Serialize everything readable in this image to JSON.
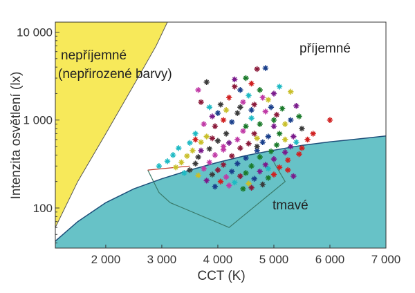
{
  "chart_data": {
    "type": "scatter",
    "xlabel": "CCT (K)",
    "ylabel": "Intenzita osvětlení (lx)",
    "xlim": [
      1100,
      7000
    ],
    "ylim": [
      35,
      13000
    ],
    "y_scale": "log",
    "x_ticks": [
      {
        "value": 2000,
        "label": "2 000"
      },
      {
        "value": 3000,
        "label": "3 000"
      },
      {
        "value": 4000,
        "label": "4 000"
      },
      {
        "value": 5000,
        "label": "5 000"
      },
      {
        "value": 6000,
        "label": "6 000"
      },
      {
        "value": 7000,
        "label": "7 000"
      }
    ],
    "y_ticks": [
      {
        "value": 100,
        "label": "100"
      },
      {
        "value": 1000,
        "label": "1 000"
      },
      {
        "value": 10000,
        "label": "10 000"
      }
    ],
    "regions": [
      {
        "label": "nepříjemné",
        "label2": "(nepřirozené barvy)",
        "color": "#f7e95a"
      },
      {
        "label": "příjemné",
        "color": "#ffffff"
      },
      {
        "label": "tmavé",
        "color": "#67c2c7"
      }
    ],
    "region_boundaries": {
      "upper": [
        [
          1100,
          60
        ],
        [
          1500,
          200
        ],
        [
          2000,
          700
        ],
        [
          2500,
          2500
        ],
        [
          2900,
          7000
        ],
        [
          3100,
          13000
        ]
      ],
      "lower": [
        [
          1100,
          42
        ],
        [
          1500,
          70
        ],
        [
          2000,
          115
        ],
        [
          2500,
          165
        ],
        [
          3000,
          215
        ],
        [
          3500,
          270
        ],
        [
          4000,
          330
        ],
        [
          4500,
          395
        ],
        [
          5000,
          455
        ],
        [
          5500,
          515
        ],
        [
          6000,
          565
        ],
        [
          6500,
          610
        ],
        [
          7000,
          660
        ]
      ]
    },
    "polygons": [
      {
        "color": "#3a7a6a",
        "points": [
          [
            2750,
            270
          ],
          [
            2950,
            150
          ],
          [
            3150,
            115
          ],
          [
            4200,
            60
          ],
          [
            5200,
            200
          ],
          [
            5000,
            330
          ]
        ]
      },
      {
        "color": "#c0392b",
        "points": [
          [
            2750,
            270
          ],
          [
            3500,
            300
          ]
        ]
      }
    ],
    "marker_colors": [
      "#8b1a3a",
      "#1a3f8b",
      "#1a7a2a",
      "#7a1a8b",
      "#d02020",
      "#1fbac4",
      "#c9bf2a",
      "#3a3a3a",
      "#c03aa6"
    ],
    "points": [
      [
        4700,
        3800
      ],
      [
        4850,
        3900
      ],
      [
        4500,
        3000
      ],
      [
        4300,
        2900
      ],
      [
        4600,
        2600
      ],
      [
        5100,
        2400
      ],
      [
        5300,
        2100
      ],
      [
        3800,
        2700
      ],
      [
        3650,
        2200
      ],
      [
        3700,
        1600
      ],
      [
        4400,
        2200
      ],
      [
        4750,
        2200
      ],
      [
        5000,
        2000
      ],
      [
        4200,
        1800
      ],
      [
        4550,
        1900
      ],
      [
        4900,
        1700
      ],
      [
        4050,
        1500
      ],
      [
        4450,
        1600
      ],
      [
        4650,
        1500
      ],
      [
        4950,
        1400
      ],
      [
        5150,
        1350
      ],
      [
        5400,
        1450
      ],
      [
        6000,
        1000
      ],
      [
        3850,
        1400
      ],
      [
        4150,
        1300
      ],
      [
        4350,
        1200
      ],
      [
        4850,
        1250
      ],
      [
        5050,
        1150
      ],
      [
        5300,
        1000
      ],
      [
        5450,
        1100
      ],
      [
        3900,
        1100
      ],
      [
        4100,
        1000
      ],
      [
        4600,
        1050
      ],
      [
        5200,
        900
      ],
      [
        5500,
        800
      ],
      [
        3750,
        900
      ],
      [
        3950,
        850
      ],
      [
        4250,
        950
      ],
      [
        4750,
        900
      ],
      [
        5000,
        850
      ],
      [
        5700,
        700
      ],
      [
        3600,
        700
      ],
      [
        3800,
        650
      ],
      [
        4150,
        700
      ],
      [
        4450,
        750
      ],
      [
        4650,
        700
      ],
      [
        4900,
        650
      ],
      [
        5100,
        700
      ],
      [
        5350,
        650
      ],
      [
        5600,
        600
      ],
      [
        3500,
        550
      ],
      [
        3700,
        560
      ],
      [
        4000,
        580
      ],
      [
        4350,
        600
      ],
      [
        4550,
        540
      ],
      [
        4800,
        560
      ],
      [
        5050,
        520
      ],
      [
        5300,
        500
      ],
      [
        5500,
        480
      ],
      [
        3300,
        480
      ],
      [
        3550,
        450
      ],
      [
        3850,
        470
      ],
      [
        4100,
        460
      ],
      [
        4400,
        480
      ],
      [
        4700,
        450
      ],
      [
        4950,
        440
      ],
      [
        5200,
        430
      ],
      [
        5450,
        410
      ],
      [
        3200,
        400
      ],
      [
        3450,
        390
      ],
      [
        3650,
        380
      ],
      [
        3950,
        400
      ],
      [
        4250,
        390
      ],
      [
        4500,
        370
      ],
      [
        4750,
        380
      ],
      [
        5000,
        360
      ],
      [
        5250,
        350
      ],
      [
        3100,
        340
      ],
      [
        3350,
        330
      ],
      [
        3600,
        320
      ],
      [
        3850,
        330
      ],
      [
        4100,
        310
      ],
      [
        4350,
        320
      ],
      [
        4600,
        300
      ],
      [
        4850,
        310
      ],
      [
        5100,
        290
      ],
      [
        2950,
        300
      ],
      [
        3250,
        290
      ],
      [
        3500,
        270
      ],
      [
        3750,
        280
      ],
      [
        4000,
        270
      ],
      [
        4250,
        260
      ],
      [
        4500,
        250
      ],
      [
        4750,
        260
      ],
      [
        5000,
        240
      ],
      [
        3400,
        250
      ],
      [
        3650,
        235
      ],
      [
        3900,
        240
      ],
      [
        4150,
        225
      ],
      [
        4400,
        230
      ],
      [
        4650,
        215
      ],
      [
        4900,
        220
      ],
      [
        3800,
        205
      ],
      [
        4050,
        200
      ],
      [
        4300,
        195
      ],
      [
        4550,
        190
      ],
      [
        4800,
        185
      ],
      [
        4200,
        180
      ],
      [
        4600,
        170
      ],
      [
        3950,
        175
      ],
      [
        4450,
        165
      ],
      [
        5350,
        230
      ],
      [
        5250,
        270
      ],
      [
        4900,
        280
      ],
      [
        4700,
        620
      ],
      [
        4400,
        1400
      ],
      [
        4800,
        1800
      ],
      [
        4300,
        2400
      ],
      [
        4000,
        1200
      ],
      [
        4500,
        850
      ],
      [
        4200,
        550
      ],
      [
        3600,
        600
      ],
      [
        5400,
        560
      ],
      [
        5200,
        600
      ],
      [
        4700,
        500
      ],
      [
        4100,
        500
      ],
      [
        3900,
        620
      ],
      [
        4600,
        1300
      ],
      [
        5000,
        1000
      ],
      [
        3700,
        450
      ]
    ]
  }
}
